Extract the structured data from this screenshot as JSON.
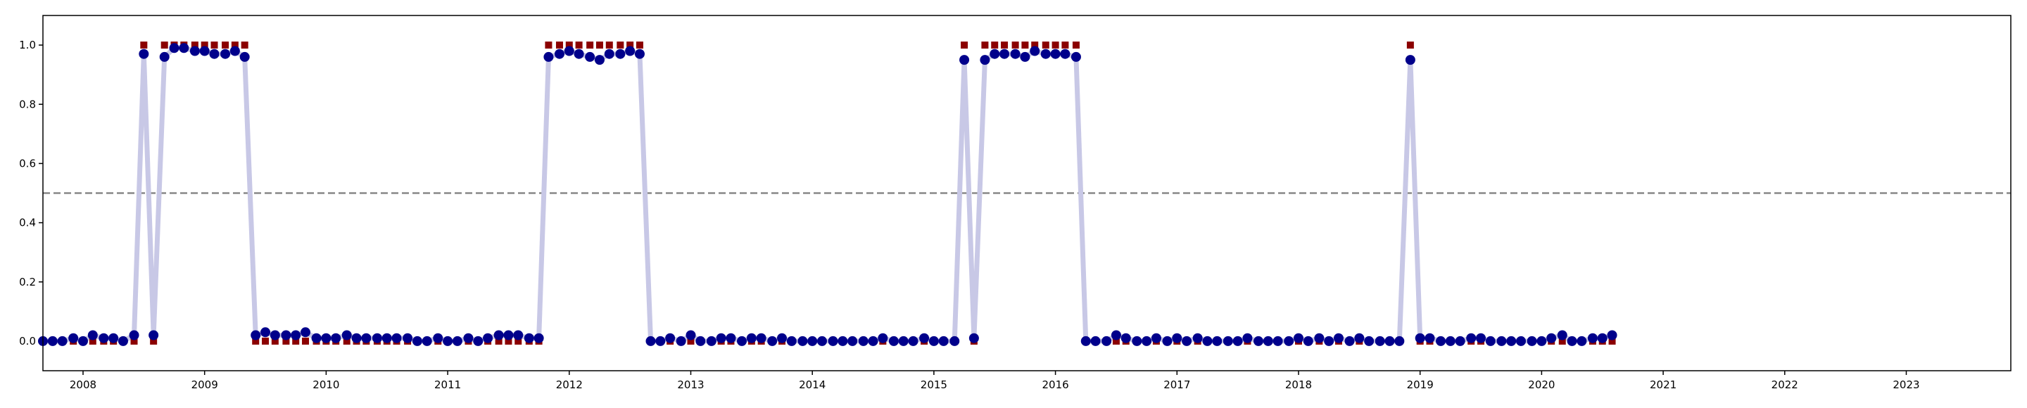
{
  "chart_data": {
    "type": "line",
    "x": [
      2007.67,
      2007.75,
      2007.83,
      2007.92,
      2008.0,
      2008.08,
      2008.17,
      2008.25,
      2008.33,
      2008.42,
      2008.5,
      2008.58,
      2008.67,
      2008.75,
      2008.83,
      2008.92,
      2009.0,
      2009.08,
      2009.17,
      2009.25,
      2009.33,
      2009.42,
      2009.5,
      2009.58,
      2009.67,
      2009.75,
      2009.83,
      2009.92,
      2010.0,
      2010.08,
      2010.17,
      2010.25,
      2010.33,
      2010.42,
      2010.5,
      2010.58,
      2010.67,
      2010.75,
      2010.83,
      2010.92,
      2011.0,
      2011.08,
      2011.17,
      2011.25,
      2011.33,
      2011.42,
      2011.5,
      2011.58,
      2011.67,
      2011.75,
      2011.83,
      2011.92,
      2012.0,
      2012.08,
      2012.17,
      2012.25,
      2012.33,
      2012.42,
      2012.5,
      2012.58,
      2012.67,
      2012.75,
      2012.83,
      2012.92,
      2013.0,
      2013.08,
      2013.17,
      2013.25,
      2013.33,
      2013.42,
      2013.5,
      2013.58,
      2013.67,
      2013.75,
      2013.83,
      2013.92,
      2014.0,
      2014.08,
      2014.17,
      2014.25,
      2014.33,
      2014.42,
      2014.5,
      2014.58,
      2014.67,
      2014.75,
      2014.83,
      2014.92,
      2015.0,
      2015.08,
      2015.17,
      2015.25,
      2015.33,
      2015.42,
      2015.5,
      2015.58,
      2015.67,
      2015.75,
      2015.83,
      2015.92,
      2016.0,
      2016.08,
      2016.17,
      2016.25,
      2016.33,
      2016.42,
      2016.5,
      2016.58,
      2016.67,
      2016.75,
      2016.83,
      2016.92,
      2017.0,
      2017.08,
      2017.17,
      2017.25,
      2017.33,
      2017.42,
      2017.5,
      2017.58,
      2017.67,
      2017.75,
      2017.83,
      2017.92,
      2018.0,
      2018.08,
      2018.17,
      2018.25,
      2018.33,
      2018.42,
      2018.5,
      2018.58,
      2018.67,
      2018.75,
      2018.83,
      2018.92,
      2019.0,
      2019.08,
      2019.17,
      2019.25,
      2019.33,
      2019.42,
      2019.5,
      2019.58,
      2019.67,
      2019.75,
      2019.83,
      2019.92,
      2020.0,
      2020.08,
      2020.17,
      2020.25,
      2020.33,
      2020.42,
      2020.5,
      2020.58
    ],
    "series": [
      {
        "color": "#8b0000",
        "marker": "square",
        "values": [
          0,
          0,
          0,
          0,
          0,
          0,
          0,
          0,
          0,
          0,
          1,
          0,
          1,
          1,
          1,
          1,
          1,
          1,
          1,
          1,
          1,
          0,
          0,
          0,
          0,
          0,
          0,
          0,
          0,
          0,
          0,
          0,
          0,
          0,
          0,
          0,
          0,
          0,
          0,
          0,
          0,
          0,
          0,
          0,
          0,
          0,
          0,
          0,
          0,
          0,
          1,
          1,
          1,
          1,
          1,
          1,
          1,
          1,
          1,
          1,
          0,
          0,
          0,
          0,
          0,
          0,
          0,
          0,
          0,
          0,
          0,
          0,
          0,
          0,
          0,
          0,
          0,
          0,
          0,
          0,
          0,
          0,
          0,
          0,
          0,
          0,
          0,
          0,
          0,
          0,
          0,
          1,
          0,
          1,
          1,
          1,
          1,
          1,
          1,
          1,
          1,
          1,
          1,
          0,
          0,
          0,
          0,
          0,
          0,
          0,
          0,
          0,
          0,
          0,
          0,
          0,
          0,
          0,
          0,
          0,
          0,
          0,
          0,
          0,
          0,
          0,
          0,
          0,
          0,
          0,
          0,
          0,
          0,
          0,
          0,
          1,
          0,
          0,
          0,
          0,
          0,
          0,
          0,
          0,
          0,
          0,
          0,
          0,
          0,
          0,
          0,
          0,
          0,
          0,
          0,
          0
        ]
      },
      {
        "color": "#00008b",
        "marker": "circle",
        "line_color": "#c8c8e6",
        "values": [
          0.0,
          0.0,
          0.0,
          0.01,
          0.0,
          0.02,
          0.01,
          0.01,
          0.0,
          0.02,
          0.97,
          0.02,
          0.96,
          0.99,
          0.99,
          0.98,
          0.98,
          0.97,
          0.97,
          0.98,
          0.96,
          0.02,
          0.03,
          0.02,
          0.02,
          0.02,
          0.03,
          0.01,
          0.01,
          0.01,
          0.02,
          0.01,
          0.01,
          0.01,
          0.01,
          0.01,
          0.01,
          0.0,
          0.0,
          0.01,
          0.0,
          0.0,
          0.01,
          0.0,
          0.01,
          0.02,
          0.02,
          0.02,
          0.01,
          0.01,
          0.96,
          0.97,
          0.98,
          0.97,
          0.96,
          0.95,
          0.97,
          0.97,
          0.98,
          0.97,
          0.0,
          0.0,
          0.01,
          0.0,
          0.02,
          0.0,
          0.0,
          0.01,
          0.01,
          0.0,
          0.01,
          0.01,
          0.0,
          0.01,
          0.0,
          0.0,
          0.0,
          0.0,
          0.0,
          0.0,
          0.0,
          0.0,
          0.0,
          0.01,
          0.0,
          0.0,
          0.0,
          0.01,
          0.0,
          0.0,
          0.0,
          0.95,
          0.01,
          0.95,
          0.97,
          0.97,
          0.97,
          0.96,
          0.98,
          0.97,
          0.97,
          0.97,
          0.96,
          0.0,
          0.0,
          0.0,
          0.02,
          0.01,
          0.0,
          0.0,
          0.01,
          0.0,
          0.01,
          0.0,
          0.01,
          0.0,
          0.0,
          0.0,
          0.0,
          0.01,
          0.0,
          0.0,
          0.0,
          0.0,
          0.01,
          0.0,
          0.01,
          0.0,
          0.01,
          0.0,
          0.01,
          0.0,
          0.0,
          0.0,
          0.0,
          0.95,
          0.01,
          0.01,
          0.0,
          0.0,
          0.0,
          0.01,
          0.01,
          0.0,
          0.0,
          0.0,
          0.0,
          0.0,
          0.0,
          0.01,
          0.02,
          0.0,
          0.0,
          0.01,
          0.01,
          0.02
        ]
      }
    ],
    "threshold": 0.5,
    "xlim": [
      2007.67,
      2023.86
    ],
    "xticks": [
      2008,
      2009,
      2010,
      2011,
      2012,
      2013,
      2014,
      2015,
      2016,
      2017,
      2018,
      2019,
      2020,
      2021,
      2022,
      2023
    ],
    "ylim": [
      -0.1,
      1.1
    ],
    "yticks": [
      {
        "value": 0,
        "label": "0.0"
      },
      0.2,
      0.4,
      0.6,
      0.8,
      {
        "value": 1,
        "label": "1.0"
      }
    ]
  }
}
